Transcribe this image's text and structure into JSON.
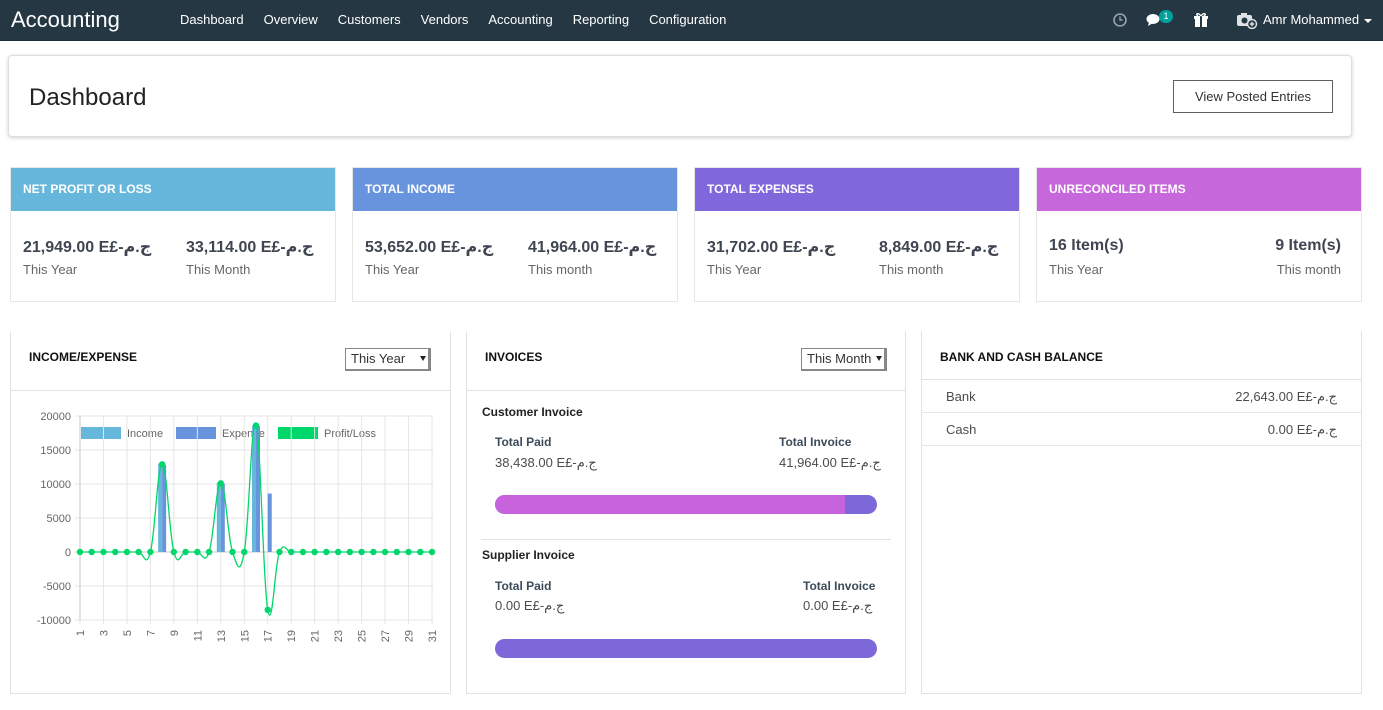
{
  "app": {
    "title": "Accounting",
    "menu": [
      "Dashboard",
      "Overview",
      "Customers",
      "Vendors",
      "Accounting",
      "Reporting",
      "Configuration"
    ],
    "messages_badge": "1",
    "user_name": "Amr Mohammed"
  },
  "header": {
    "title": "Dashboard",
    "view_posted_label": "View Posted Entries"
  },
  "cards": [
    {
      "title": "NET PROFIT OR LOSS",
      "color": "#67b7dc",
      "v1": "21,949.00 E£-ج.م",
      "l1": "This Year",
      "v2": "33,114.00 E£-ج.م",
      "l2": "This Month"
    },
    {
      "title": "TOTAL INCOME",
      "color": "#6794dc",
      "v1": "53,652.00 E£-ج.م",
      "l1": "This Year",
      "v2": "41,964.00 E£-ج.م",
      "l2": "This month"
    },
    {
      "title": "TOTAL EXPENSES",
      "color": "#8067dc",
      "v1": "31,702.00 E£-ج.م",
      "l1": "This Year",
      "v2": "8,849.00 E£-ج.م",
      "l2": "This month"
    },
    {
      "title": "UNRECONCILED ITEMS",
      "color": "#c767dc",
      "v1": "16 Item(s)",
      "l1": "This Year",
      "v2": "9 Item(s)",
      "l2": "This month"
    }
  ],
  "income_expense": {
    "title": "INCOME/EXPENSE",
    "period": "This Year"
  },
  "chart_data": {
    "type": "bar",
    "title": "",
    "xlabel": "",
    "ylabel": "",
    "x": [
      1,
      2,
      3,
      4,
      5,
      6,
      7,
      8,
      9,
      10,
      11,
      12,
      13,
      14,
      15,
      16,
      17,
      18,
      19,
      20,
      21,
      22,
      23,
      24,
      25,
      26,
      27,
      28,
      29,
      30,
      31
    ],
    "x_tick_labels": [
      "1",
      "3",
      "5",
      "7",
      "9",
      "11",
      "13",
      "15",
      "17",
      "19",
      "21",
      "23",
      "25",
      "27",
      "29",
      "31"
    ],
    "y_ticks": [
      20000,
      15000,
      10000,
      5000,
      0,
      -5000,
      -10000
    ],
    "ylim": [
      -10000,
      20000
    ],
    "legend_position": "top",
    "grid": true,
    "series": [
      {
        "name": "Income",
        "type": "bar",
        "color": "#67b7dc",
        "values": [
          0,
          0,
          0,
          0,
          0,
          0,
          0,
          13000,
          0,
          0,
          0,
          0,
          10200,
          0,
          0,
          18600,
          0,
          0,
          0,
          0,
          0,
          0,
          0,
          0,
          0,
          0,
          0,
          0,
          0,
          0,
          0
        ]
      },
      {
        "name": "Expense",
        "type": "bar",
        "color": "#6794dc",
        "values": [
          0,
          0,
          0,
          0,
          0,
          0,
          0,
          12800,
          0,
          0,
          0,
          0,
          10100,
          0,
          0,
          18500,
          8600,
          0,
          0,
          0,
          0,
          0,
          0,
          0,
          0,
          0,
          0,
          0,
          0,
          0,
          0
        ]
      },
      {
        "name": "Profit/Loss",
        "type": "line",
        "color": "#00d76a",
        "values": [
          0,
          0,
          0,
          0,
          0,
          0,
          0,
          12900,
          0,
          0,
          0,
          0,
          10100,
          0,
          0,
          18600,
          -8500,
          0,
          0,
          0,
          0,
          0,
          0,
          0,
          0,
          0,
          0,
          0,
          0,
          0,
          0
        ]
      }
    ]
  },
  "invoices": {
    "title": "INVOICES",
    "period": "This Month",
    "customer": {
      "label": "Customer Invoice",
      "paid_label": "Total Paid",
      "paid": "38,438.00 E£-ج.م",
      "total_label": "Total Invoice",
      "total": "41,964.00 E£-ج.م",
      "paid_fraction": 0.916
    },
    "supplier": {
      "label": "Supplier Invoice",
      "paid_label": "Total Paid",
      "paid": "0.00 E£-ج.م",
      "total_label": "Total Invoice",
      "total": "0.00 E£-ج.م",
      "paid_fraction": 0
    },
    "paid_color": "#c764dd",
    "total_color": "#7c68d8"
  },
  "bank_cash": {
    "title": "BANK AND CASH BALANCE",
    "rows": [
      {
        "name": "Bank",
        "amount": "22,643.00 E£-ج.م"
      },
      {
        "name": "Cash",
        "amount": "0.00 E£-ج.م"
      }
    ]
  }
}
